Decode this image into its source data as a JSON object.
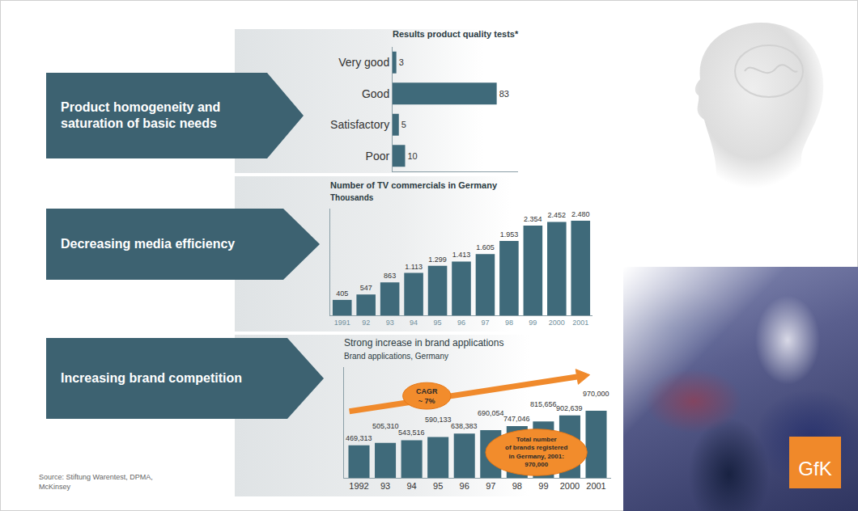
{
  "panel_labels": [
    "Product homogeneity and saturation of basic needs",
    "Decreasing media efficiency",
    "Increasing brand competition"
  ],
  "chart_data": [
    {
      "type": "bar",
      "orientation": "horizontal",
      "title": "Results product quality tests*",
      "categories": [
        "Very good",
        "Good",
        "Satisfactory",
        "Poor"
      ],
      "values": [
        3,
        83,
        5,
        10
      ],
      "color": "#3f6a7a",
      "xlim": [
        0,
        100
      ],
      "data_labels": true,
      "tick_labels": "y"
    },
    {
      "type": "bar",
      "title": "Number of TV commercials in Germany",
      "subtitle": "Thousands",
      "categories": [
        "1991",
        "92",
        "93",
        "94",
        "95",
        "96",
        "97",
        "98",
        "99",
        "2000",
        "2001"
      ],
      "values": [
        405,
        547,
        863,
        1113,
        1299,
        1413,
        1605,
        1953,
        2354,
        2452,
        2480
      ],
      "value_labels": [
        "405",
        "547",
        "863",
        "1.113",
        "1.299",
        "1.413",
        "1.605",
        "1.953",
        "2.354",
        "2.452",
        "2.480"
      ],
      "color": "#3f6a7a",
      "ylim": [
        0,
        2800
      ],
      "data_labels": true,
      "tick_labels": "x"
    },
    {
      "type": "bar",
      "title": "Strong increase in brand applications",
      "subtitle": "Brand applications, Germany",
      "categories": [
        "1992",
        "93",
        "94",
        "95",
        "96",
        "97",
        "98",
        "99",
        "2000",
        "2001"
      ],
      "values": [
        469313,
        505310,
        543516,
        590133,
        638383,
        690054,
        747046,
        815656,
        902639,
        970000
      ],
      "value_labels": [
        "469,313",
        "505,310",
        "543,516",
        "590,133",
        "638,383",
        "690,054",
        "747,046",
        "815,656",
        "902,639",
        "970,000"
      ],
      "color": "#3f6a7a",
      "ylim": [
        0,
        1600000
      ],
      "data_labels": true,
      "tick_labels": "x",
      "annotations": [
        "CAGR\n~ 7%",
        "Total number\nof brands registered\nin Germany, 2001:\n970,000"
      ]
    }
  ],
  "source": "Source: Stiftung Warentest, DPMA, McKinsey",
  "logo": "GfK"
}
